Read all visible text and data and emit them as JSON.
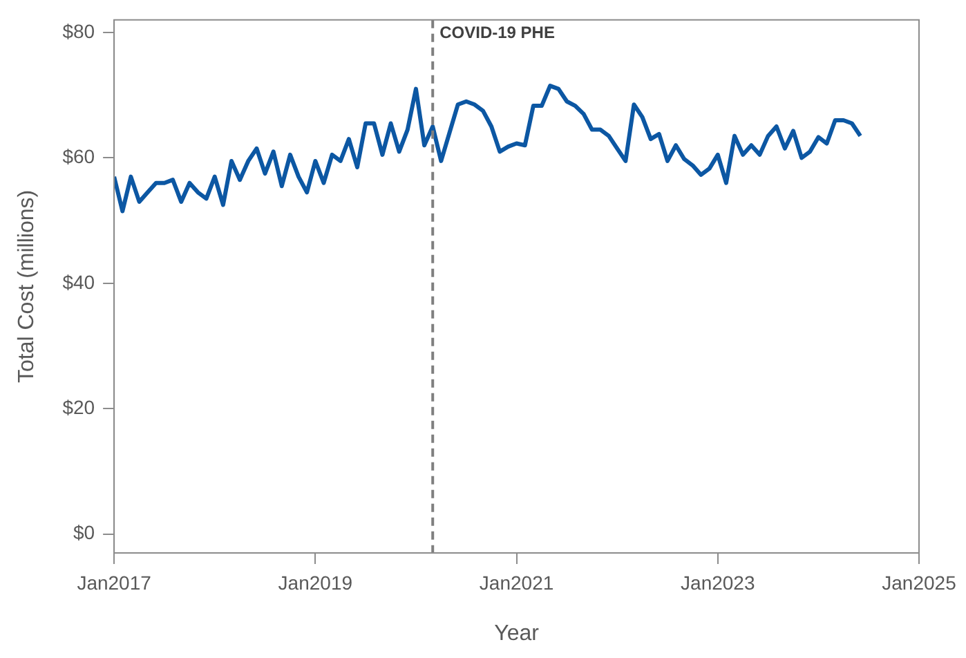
{
  "chart_data": {
    "type": "line",
    "xlabel": "Year",
    "ylabel": "Total Cost (millions)",
    "x": [
      "2017-01",
      "2017-02",
      "2017-03",
      "2017-04",
      "2017-05",
      "2017-06",
      "2017-07",
      "2017-08",
      "2017-09",
      "2017-10",
      "2017-11",
      "2017-12",
      "2018-01",
      "2018-02",
      "2018-03",
      "2018-04",
      "2018-05",
      "2018-06",
      "2018-07",
      "2018-08",
      "2018-09",
      "2018-10",
      "2018-11",
      "2018-12",
      "2019-01",
      "2019-02",
      "2019-03",
      "2019-04",
      "2019-05",
      "2019-06",
      "2019-07",
      "2019-08",
      "2019-09",
      "2019-10",
      "2019-11",
      "2019-12",
      "2020-01",
      "2020-02",
      "2020-03",
      "2020-04",
      "2020-05",
      "2020-06",
      "2020-07",
      "2020-08",
      "2020-09",
      "2020-10",
      "2020-11",
      "2020-12",
      "2021-01",
      "2021-02",
      "2021-03",
      "2021-04",
      "2021-05",
      "2021-06",
      "2021-07",
      "2021-08",
      "2021-09",
      "2021-10",
      "2021-11",
      "2021-12",
      "2022-01",
      "2022-02",
      "2022-03",
      "2022-04",
      "2022-05",
      "2022-06",
      "2022-07",
      "2022-08",
      "2022-09",
      "2022-10",
      "2022-11",
      "2022-12",
      "2023-01",
      "2023-02",
      "2023-03",
      "2023-04",
      "2023-05",
      "2023-06",
      "2023-07",
      "2023-08",
      "2023-09",
      "2023-10",
      "2023-11",
      "2023-12",
      "2024-01",
      "2024-02",
      "2024-03",
      "2024-04",
      "2024-05",
      "2024-06"
    ],
    "series": [
      {
        "color": "#0c57a3",
        "values": [
          57,
          51.5,
          57,
          53,
          54.5,
          56,
          56,
          56.5,
          53,
          56,
          54.5,
          53.5,
          57,
          52.5,
          59.5,
          56.5,
          59.5,
          61.5,
          57.5,
          61,
          55.5,
          60.5,
          57,
          54.5,
          59.5,
          56,
          60.5,
          59.5,
          63,
          58.5,
          65.5,
          65.5,
          60.5,
          65.5,
          61,
          64.5,
          71,
          62,
          65,
          59.5,
          64,
          68.5,
          69,
          68.5,
          67.5,
          65,
          61,
          61.8,
          62.3,
          62,
          68.3,
          68.3,
          71.5,
          71,
          69,
          68.3,
          67,
          64.5,
          64.5,
          63.5,
          61.5,
          59.5,
          68.5,
          66.5,
          63,
          63.8,
          59.5,
          62,
          59.8,
          58.8,
          57.3,
          58.3,
          60.5,
          56,
          63.5,
          60.5,
          62,
          60.5,
          63.5,
          65,
          61.5,
          64.3,
          60,
          61,
          63.3,
          62.3,
          66,
          66,
          65.5,
          63.5
        ]
      }
    ],
    "xlim": [
      "2017-01",
      "2025-01"
    ],
    "xticks": [
      {
        "value": "2017-01",
        "label": "Jan2017"
      },
      {
        "value": "2019-01",
        "label": "Jan2019"
      },
      {
        "value": "2021-01",
        "label": "Jan2021"
      },
      {
        "value": "2023-01",
        "label": "Jan2023"
      },
      {
        "value": "2025-01",
        "label": "Jan2025"
      }
    ],
    "ylim": [
      -3,
      82
    ],
    "yticks": [
      {
        "value": 0,
        "label": "$0"
      },
      {
        "value": 20,
        "label": "$20"
      },
      {
        "value": 40,
        "label": "$40"
      },
      {
        "value": 60,
        "label": "$60"
      },
      {
        "value": 80,
        "label": "$80"
      }
    ],
    "ref_lines": [
      {
        "axis": "x",
        "value": "2020-03",
        "label": "COVID-19 PHE",
        "color": "#7f7f7f",
        "line_style": "dashed"
      }
    ],
    "grid": false,
    "legend": false,
    "marker": "none",
    "line_style": "solid"
  }
}
